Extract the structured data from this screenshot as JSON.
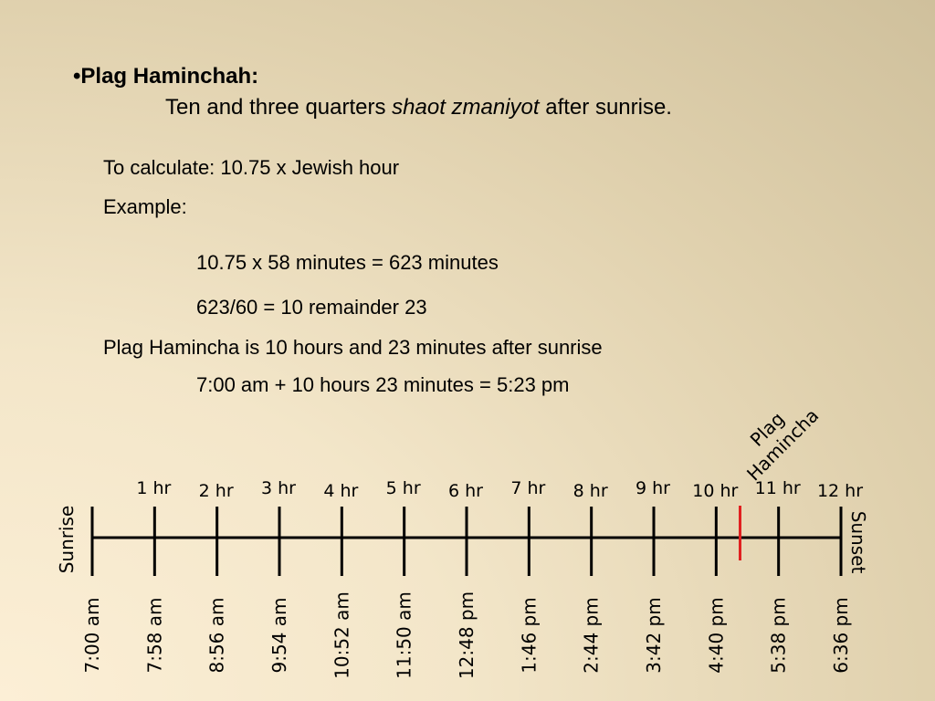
{
  "slide": {
    "bullet": "•",
    "title": "Plag Haminchah:",
    "definition_pre": "Ten and three quarters ",
    "definition_em": "shaot zmaniyot",
    "definition_post": " after sunrise.",
    "to_calculate": "To calculate:  10.75 x Jewish hour",
    "example_label": "Example:",
    "calc_step1": "10.75 x 58 minutes = 623 minutes",
    "calc_step2": "623/60 = 10 remainder 23",
    "result_text": "Plag Hamincha is 10 hours and 23 minutes after sunrise",
    "result_calc": "7:00 am + 10 hours 23 minutes = 5:23 pm"
  },
  "timeline": {
    "start_label": "Sunrise",
    "end_label": "Sunset",
    "marker_label_line1": "Plag",
    "marker_label_line2": "Hamincha",
    "marker_color": "#e02020",
    "line_color": "#000000",
    "marker_hours": 10.383,
    "hour_labels": [
      "1 hr",
      "2 hr",
      "3 hr",
      "4 hr",
      "5 hr",
      "6 hr",
      "7 hr",
      "8 hr",
      "9 hr",
      "10 hr",
      "11 hr",
      "12 hr"
    ],
    "time_labels": [
      "7:00 am",
      "7:58 am",
      "8:56 am",
      "9:54 am",
      "10:52 am",
      "11:50 am",
      "12:48 pm",
      "1:46 pm",
      "2:44 pm",
      "3:42 pm",
      "4:40 pm",
      "5:38 pm",
      "6:36 pm"
    ]
  }
}
